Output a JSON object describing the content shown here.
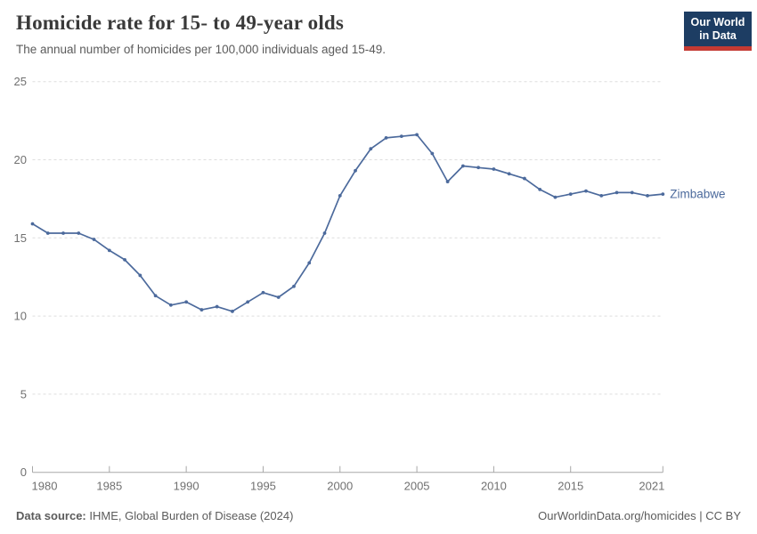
{
  "header": {
    "title": "Homicide rate for 15- to 49-year olds",
    "subtitle": "The annual number of homicides per 100,000 individuals aged 15-49.",
    "logo": {
      "line1": "Our World",
      "line2": "in Data"
    }
  },
  "colors": {
    "line": "#4c6a9c",
    "grid": "#dedede",
    "axis": "#a8a8a8",
    "tick_label": "#707070",
    "title": "#3a3a3a",
    "subtitle": "#5b5b5b",
    "footer": "#5b5b5b",
    "logo_bg": "#1d3d63",
    "logo_bar": "#c43a33"
  },
  "chart_data": {
    "type": "line",
    "title": "Homicide rate for 15- to 49-year olds",
    "subtitle": "The annual number of homicides per 100,000 individuals aged 15-49.",
    "xlabel": "",
    "ylabel": "",
    "xlim": [
      1980,
      2021
    ],
    "ylim": [
      0,
      25
    ],
    "x_ticks": [
      1980,
      1985,
      1990,
      1995,
      2000,
      2005,
      2010,
      2015,
      2021
    ],
    "y_ticks": [
      0,
      5,
      10,
      15,
      20,
      25
    ],
    "grid": "horizontal dashed",
    "legend_position": "end-of-line label",
    "series": [
      {
        "name": "Zimbabwe",
        "color": "#4c6a9c",
        "x": [
          1980,
          1981,
          1982,
          1983,
          1984,
          1985,
          1986,
          1987,
          1988,
          1989,
          1990,
          1991,
          1992,
          1993,
          1994,
          1995,
          1996,
          1997,
          1998,
          1999,
          2000,
          2001,
          2002,
          2003,
          2004,
          2005,
          2006,
          2007,
          2008,
          2009,
          2010,
          2011,
          2012,
          2013,
          2014,
          2015,
          2016,
          2017,
          2018,
          2019,
          2020,
          2021
        ],
        "values": [
          15.9,
          15.3,
          15.3,
          15.3,
          14.9,
          14.2,
          13.6,
          12.6,
          11.3,
          10.7,
          10.9,
          10.4,
          10.6,
          10.3,
          10.9,
          11.5,
          11.2,
          11.9,
          13.4,
          15.3,
          17.7,
          19.3,
          20.7,
          21.4,
          21.5,
          21.6,
          20.4,
          18.6,
          19.6,
          19.5,
          19.4,
          19.1,
          18.8,
          18.1,
          17.6,
          17.8,
          18.0,
          17.7,
          17.9,
          17.9,
          17.7,
          17.8
        ]
      }
    ]
  },
  "footer": {
    "source_label": "Data source:",
    "source_text": " IHME, Global Burden of Disease (2024)",
    "right_text": "OurWorldinData.org/homicides | CC BY"
  }
}
